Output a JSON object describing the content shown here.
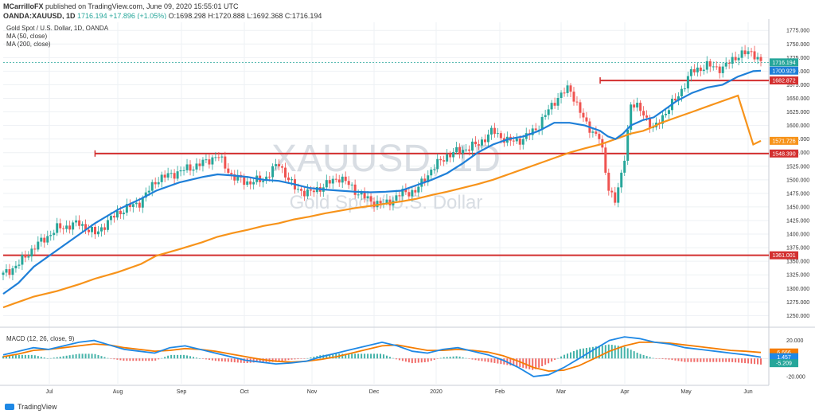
{
  "header": {
    "author": "MCarrilloFX",
    "published_text": "published on TradingView.com, June 09, 2020 15:55:01 UTC",
    "symbol": "OANDA:XAUUSD, 1D",
    "last": "1716.194",
    "change": "+17.896 (+1.05%)",
    "o": "O:1698.298",
    "h": "H:1720.888",
    "l": "L:1692.368",
    "c": "C:1716.194"
  },
  "pane": {
    "title": "Gold Spot / U.S. Dollar, 1D, OANDA",
    "ma50": "MA (50, close)",
    "ma200": "MA (200, close)",
    "macd_label": "MACD (12, 26, close, 9)",
    "watermark_symbol": "XAUUSD, 1D",
    "watermark_name": "Gold Spot / U.S. Dollar"
  },
  "brand": {
    "name": "TradingView"
  },
  "colors": {
    "up": "#26a69a",
    "down": "#ef5350",
    "ma50": "#1e7fd8",
    "ma200": "#f7931a",
    "level": "#d32f2f",
    "macd": "#1e88e5",
    "signal": "#f57c00"
  },
  "chart_data": {
    "type": "line",
    "y_ticks": [
      "1775.000",
      "1750.000",
      "1725.000",
      "1700.000",
      "1675.000",
      "1650.000",
      "1625.000",
      "1600.000",
      "1575.000",
      "1550.000",
      "1525.000",
      "1500.000",
      "1475.000",
      "1450.000",
      "1425.000",
      "1400.000",
      "1375.000",
      "1350.000",
      "1325.000",
      "1300.000",
      "1275.000",
      "1250.000"
    ],
    "x_ticks": [
      "Jul",
      "Aug",
      "Sep",
      "Oct",
      "Nov",
      "Dec",
      "2020",
      "Feb",
      "Mar",
      "Apr",
      "May",
      "Jun"
    ],
    "ylim": [
      1230,
      1790
    ],
    "price_x": [
      0,
      10,
      20,
      35,
      50,
      60,
      75,
      90,
      100,
      115,
      130,
      140,
      150,
      160,
      170,
      180,
      190,
      200,
      210,
      220,
      230,
      240,
      250,
      260,
      270,
      280,
      290,
      300,
      310,
      320,
      330,
      340,
      350,
      360,
      370,
      380,
      390,
      395,
      400,
      405,
      410,
      418,
      425,
      430,
      440,
      450,
      460,
      470,
      480,
      490,
      495
    ],
    "price_y": [
      1325,
      1345,
      1375,
      1410,
      1420,
      1400,
      1440,
      1460,
      1500,
      1515,
      1530,
      1545,
      1505,
      1495,
      1500,
      1530,
      1485,
      1475,
      1490,
      1505,
      1480,
      1460,
      1455,
      1475,
      1480,
      1520,
      1545,
      1555,
      1565,
      1590,
      1570,
      1575,
      1600,
      1645,
      1670,
      1605,
      1575,
      1490,
      1460,
      1520,
      1640,
      1625,
      1590,
      1615,
      1650,
      1700,
      1710,
      1705,
      1730,
      1735,
      1716
    ],
    "ma50_y": [
      1290,
      1310,
      1340,
      1370,
      1400,
      1420,
      1445,
      1465,
      1480,
      1495,
      1505,
      1510,
      1508,
      1505,
      1500,
      1498,
      1492,
      1485,
      1482,
      1480,
      1478,
      1477,
      1478,
      1480,
      1490,
      1500,
      1512,
      1530,
      1550,
      1565,
      1575,
      1580,
      1590,
      1605,
      1605,
      1600,
      1590,
      1580,
      1575,
      1585,
      1600,
      1610,
      1615,
      1625,
      1645,
      1660,
      1670,
      1675,
      1690,
      1700,
      1700.9
    ],
    "ma200_y": [
      1265,
      1275,
      1285,
      1295,
      1308,
      1318,
      1330,
      1345,
      1360,
      1372,
      1385,
      1395,
      1402,
      1408,
      1415,
      1420,
      1427,
      1432,
      1438,
      1443,
      1448,
      1452,
      1456,
      1460,
      1465,
      1472,
      1478,
      1485,
      1492,
      1500,
      1510,
      1520,
      1530,
      1540,
      1550,
      1558,
      1565,
      1570,
      1575,
      1580,
      1585,
      1590,
      1598,
      1605,
      1615,
      1625,
      1635,
      1645,
      1655,
      1565,
      1571.7
    ],
    "levels": [
      {
        "value": 1682.872,
        "label": "1682.872",
        "from": 390
      },
      {
        "value": 1548.39,
        "label": "1548.390",
        "from": 60
      },
      {
        "value": 1361.001,
        "label": "1361.001",
        "from": 0
      }
    ],
    "price_badges": [
      {
        "value": 1716.194,
        "label": "1716.194",
        "color": "#26a69a"
      },
      {
        "value": 1700.929,
        "label": "1700.929",
        "color": "#1e7fd8"
      },
      {
        "value": 1571.726,
        "label": "1571.726",
        "color": "#f7931a"
      }
    ],
    "macd": {
      "ylim": [
        -28,
        32
      ],
      "ticks": [
        "20.000",
        "-20.000"
      ],
      "badges": [
        {
          "value": 6.666,
          "label": "6.666",
          "color": "#f57c00"
        },
        {
          "value": 1.457,
          "label": "1.457",
          "color": "#1e88e5"
        },
        {
          "value": -5.209,
          "label": "-5.209",
          "color": "#26a69a"
        }
      ],
      "macd_y": [
        4,
        8,
        12,
        10,
        14,
        18,
        20,
        15,
        10,
        8,
        6,
        12,
        14,
        10,
        6,
        2,
        -2,
        -4,
        -6,
        -5,
        -3,
        2,
        6,
        10,
        14,
        18,
        14,
        8,
        6,
        10,
        12,
        8,
        4,
        -2,
        -10,
        -20,
        -18,
        -10,
        0,
        10,
        20,
        24,
        22,
        18,
        16,
        12,
        10,
        8,
        6,
        4,
        1.5
      ],
      "signal_y": [
        2,
        5,
        9,
        10,
        12,
        14,
        16,
        15,
        12,
        10,
        8,
        9,
        11,
        10,
        8,
        5,
        2,
        -1,
        -3,
        -4,
        -3,
        -1,
        2,
        6,
        10,
        14,
        15,
        12,
        9,
        9,
        10,
        9,
        7,
        3,
        -3,
        -10,
        -14,
        -13,
        -8,
        0,
        8,
        14,
        18,
        18,
        17,
        15,
        13,
        11,
        9,
        8,
        6.7
      ]
    }
  }
}
